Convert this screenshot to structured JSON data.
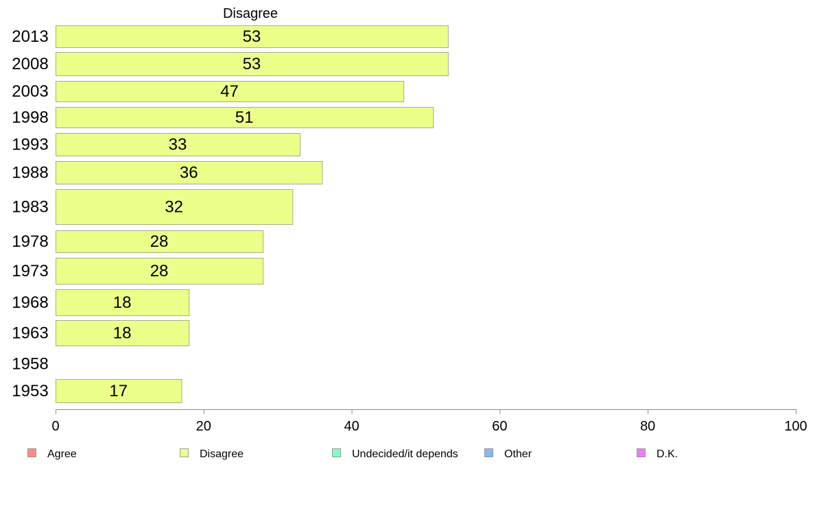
{
  "chart_data": {
    "type": "bar",
    "orientation": "horizontal",
    "title": "Disagree",
    "categories": [
      "2013",
      "2008",
      "2003",
      "1998",
      "1993",
      "1988",
      "1983",
      "1978",
      "1973",
      "1968",
      "1963",
      "1958",
      "1953"
    ],
    "series": [
      {
        "name": "Disagree",
        "values": [
          53,
          53,
          47,
          51,
          33,
          36,
          32,
          28,
          28,
          18,
          18,
          null,
          17
        ],
        "color": "#ecff8a"
      }
    ],
    "xlim": [
      0,
      100
    ],
    "xticks": [
      "0",
      "20",
      "40",
      "60",
      "80",
      "100"
    ],
    "xlabel": "",
    "ylabel": "",
    "grid": false,
    "legend_position": "bottom",
    "legend": [
      {
        "label": "Agree",
        "color": "#f98d86"
      },
      {
        "label": "Disagree",
        "color": "#ecff8a"
      },
      {
        "label": "Undecided/it depends",
        "color": "#86f9c1"
      },
      {
        "label": "Other",
        "color": "#8ab5f6"
      },
      {
        "label": "D.K.",
        "color": "#e97ff0"
      }
    ]
  }
}
